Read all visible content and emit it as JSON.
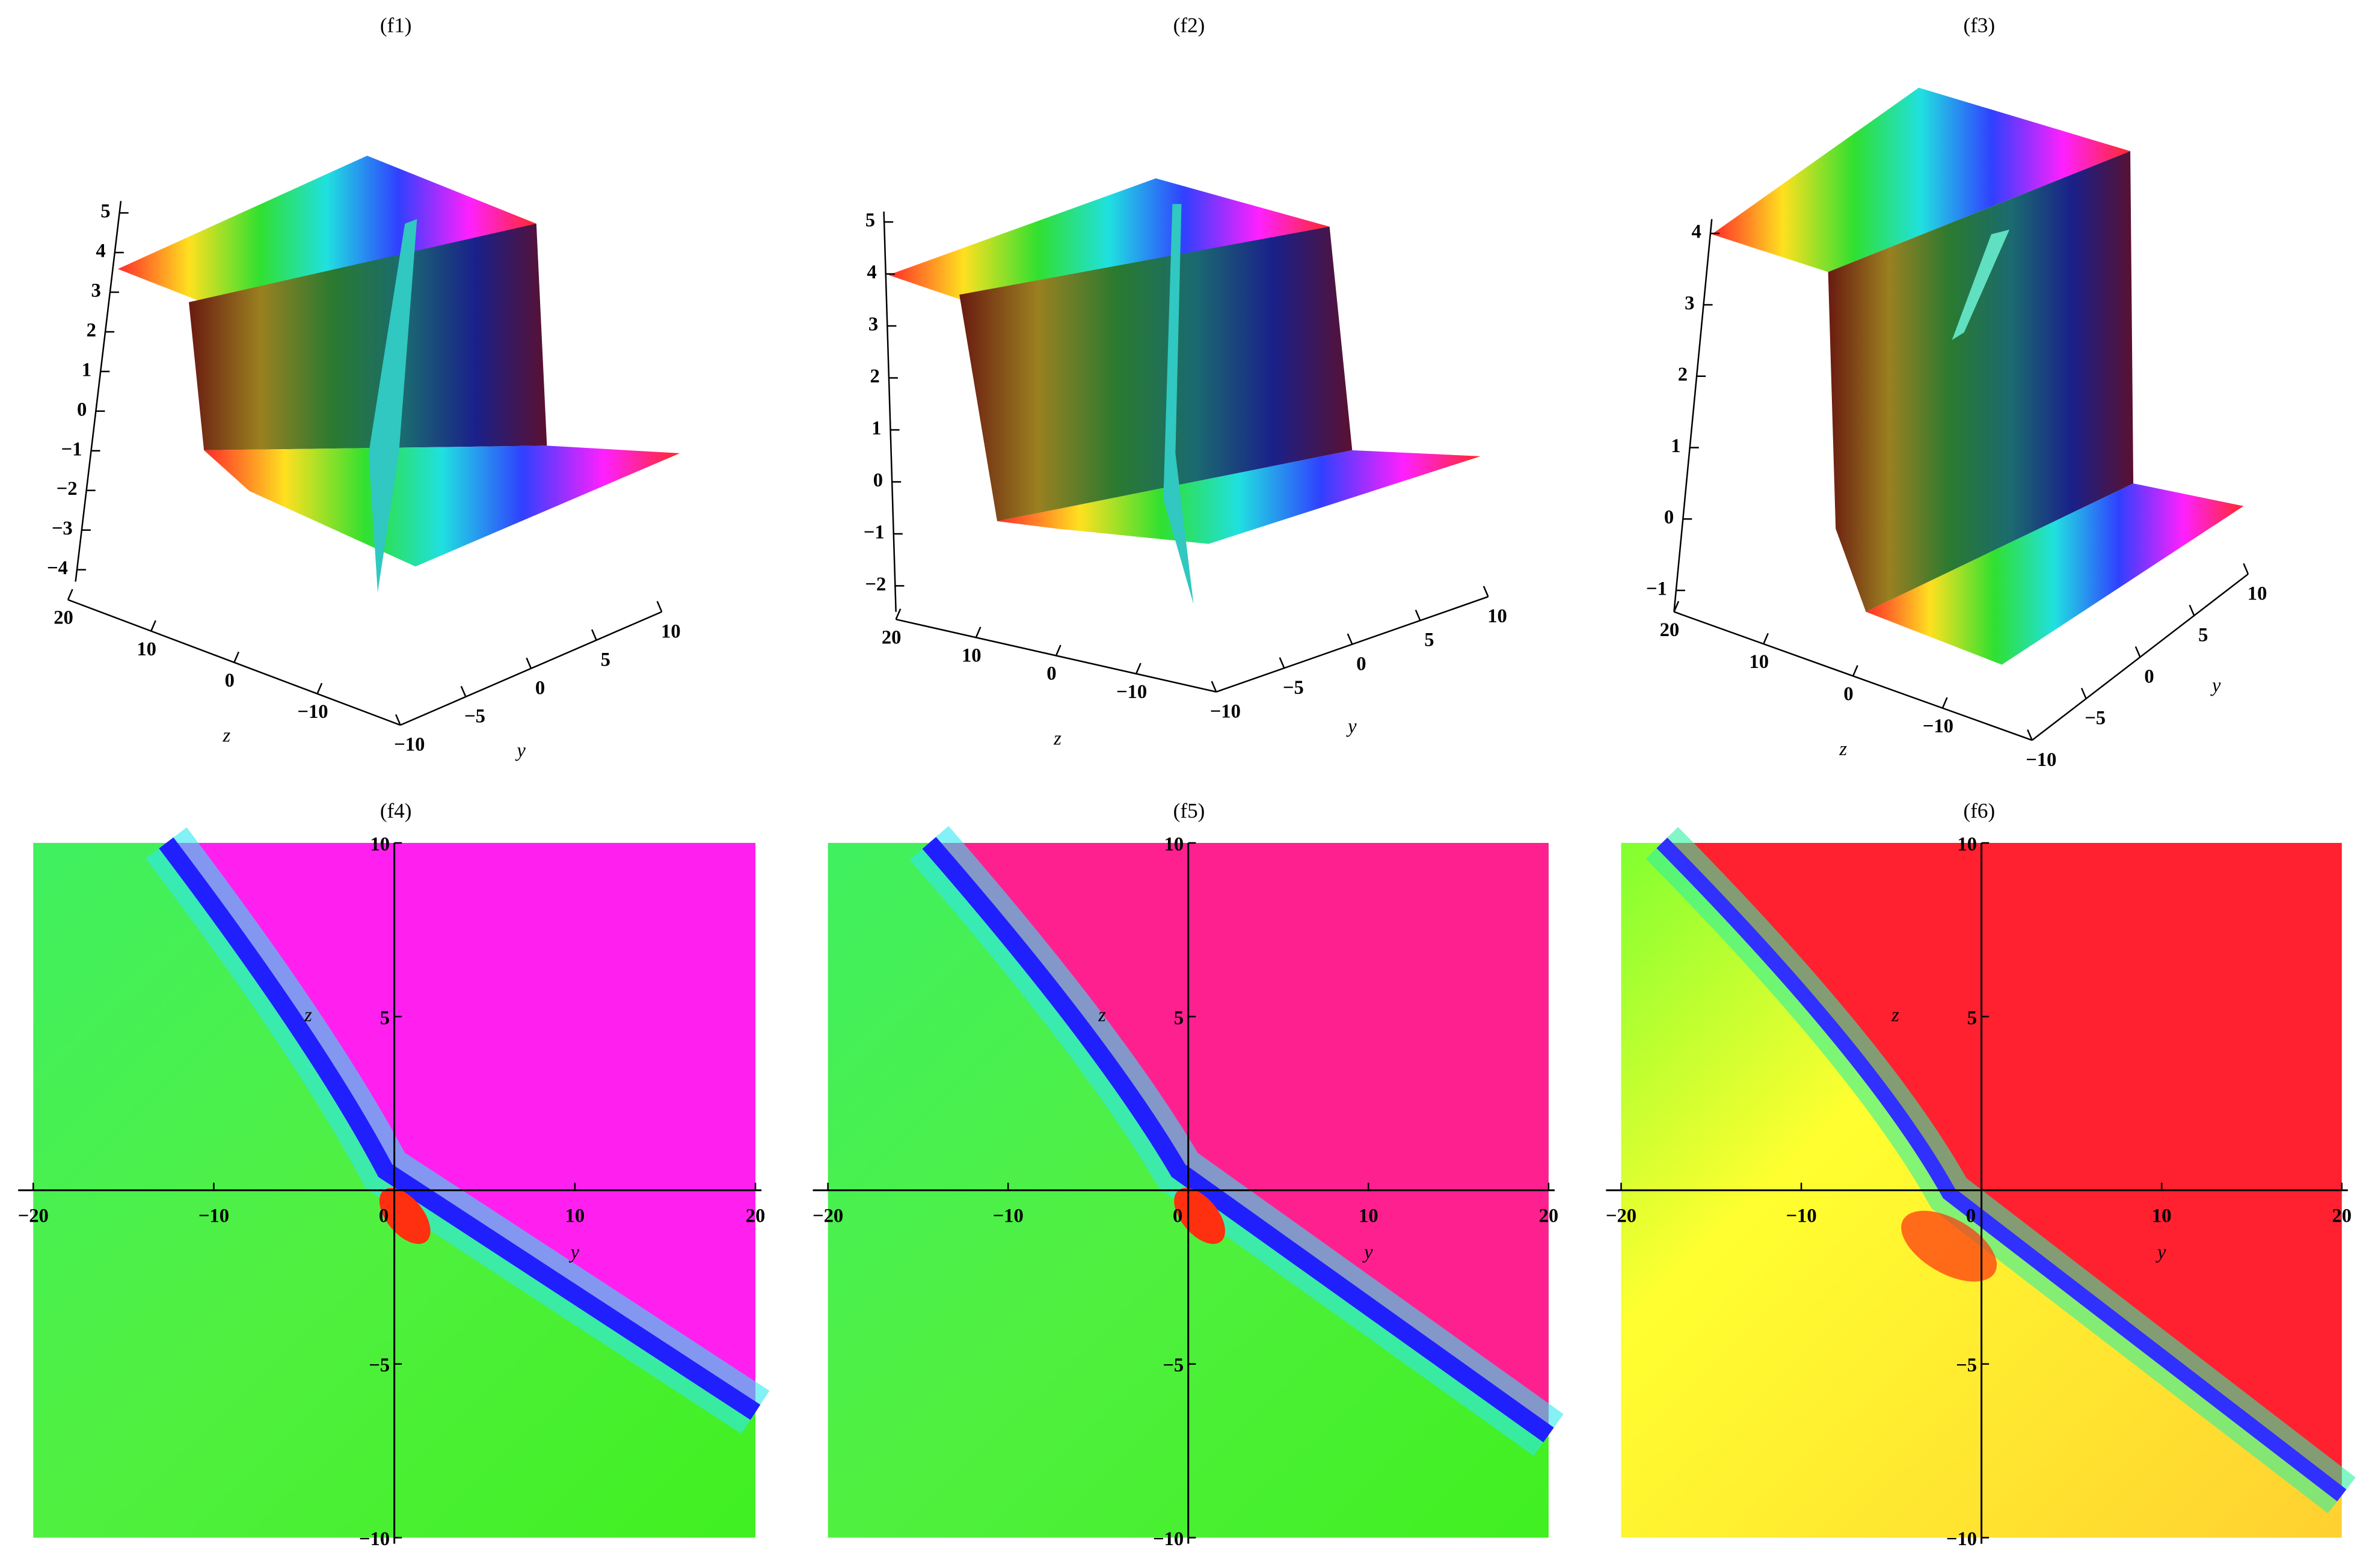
{
  "chart_data": [
    {
      "type": "surface",
      "title": "(f1)",
      "xlabel": "z",
      "ylabel": "y",
      "xlim": [
        20,
        -20
      ],
      "ylim": [
        -10,
        10
      ],
      "zlim": [
        -4.3,
        5.3
      ],
      "xticks": [
        20,
        10,
        0,
        {
          "value": -10,
          "label": "−10"
        }
      ],
      "yticks": [
        {
          "value": -10,
          "label": "−10"
        },
        {
          "value": -5,
          "label": "−5"
        },
        0,
        5,
        10
      ],
      "zticks": [
        5,
        4,
        3,
        2,
        1,
        0,
        {
          "value": -1,
          "label": "−1"
        },
        {
          "value": -2,
          "label": "−2"
        },
        {
          "value": -3,
          "label": "−3"
        },
        {
          "value": -4,
          "label": "−4"
        }
      ]
    },
    {
      "type": "surface",
      "title": "(f2)",
      "xlabel": "z",
      "ylabel": "y",
      "xlim": [
        20,
        -20
      ],
      "ylim": [
        -10,
        10
      ],
      "zlim": [
        -2.5,
        5.2
      ],
      "xticks": [
        20,
        10,
        0,
        {
          "value": -10,
          "label": "−10"
        }
      ],
      "yticks": [
        {
          "value": -10,
          "label": "−10"
        },
        {
          "value": -5,
          "label": "−5"
        },
        0,
        5,
        10
      ],
      "zticks": [
        5,
        4,
        3,
        2,
        1,
        0,
        {
          "value": -1,
          "label": "−1"
        },
        {
          "value": -2,
          "label": "−2"
        }
      ]
    },
    {
      "type": "surface",
      "title": "(f3)",
      "xlabel": "z",
      "ylabel": "y",
      "xlim": [
        20,
        -20
      ],
      "ylim": [
        -10,
        10
      ],
      "zlim": [
        -1.3,
        4.2
      ],
      "xticks": [
        20,
        10,
        0,
        {
          "value": -10,
          "label": "−10"
        }
      ],
      "yticks": [
        {
          "value": -10,
          "label": "−10"
        },
        {
          "value": -5,
          "label": "−5"
        },
        0,
        5,
        10
      ],
      "zticks": [
        4,
        3,
        2,
        1,
        0,
        {
          "value": -1,
          "label": "−1"
        }
      ]
    },
    {
      "type": "density",
      "title": "(f4)",
      "xlabel": "y",
      "ylabel": "z",
      "xlim": [
        -20,
        20
      ],
      "ylim": [
        -10,
        10
      ],
      "xticks": [
        {
          "value": -20,
          "label": "−20"
        },
        {
          "value": -10,
          "label": "−10"
        },
        0,
        10,
        20
      ],
      "yticks": [
        {
          "value": -10,
          "label": "−10"
        },
        {
          "value": -5,
          "label": "−5"
        },
        5,
        10
      ]
    },
    {
      "type": "density",
      "title": "(f5)",
      "xlabel": "y",
      "ylabel": "z",
      "xlim": [
        -20,
        20
      ],
      "ylim": [
        -10,
        10
      ],
      "xticks": [
        {
          "value": -20,
          "label": "−20"
        },
        {
          "value": -10,
          "label": "−10"
        },
        0,
        10,
        20
      ],
      "yticks": [
        {
          "value": -10,
          "label": "−10"
        },
        {
          "value": -5,
          "label": "−5"
        },
        5,
        10
      ]
    },
    {
      "type": "density",
      "title": "(f6)",
      "xlabel": "y",
      "ylabel": "z",
      "xlim": [
        -20,
        20
      ],
      "ylim": [
        -10,
        10
      ],
      "xticks": [
        {
          "value": -20,
          "label": "−20"
        },
        {
          "value": -10,
          "label": "−10"
        },
        0,
        10,
        20
      ],
      "yticks": [
        {
          "value": -10,
          "label": "−10"
        },
        {
          "value": -5,
          "label": "−5"
        },
        5,
        10
      ]
    }
  ]
}
